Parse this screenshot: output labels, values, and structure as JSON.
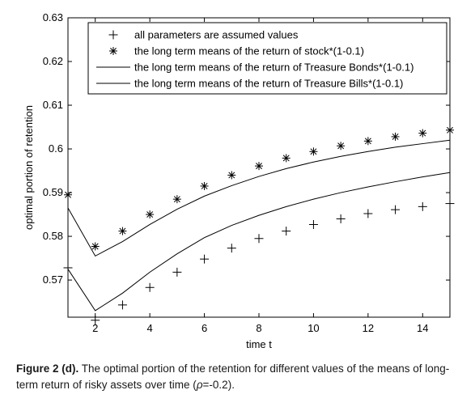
{
  "chart_data": {
    "type": "line",
    "xlabel": "time t",
    "ylabel": "optimal portion of retention",
    "xlim": [
      1,
      15
    ],
    "ylim": [
      0.5615,
      0.63
    ],
    "x_ticks": [
      2,
      4,
      6,
      8,
      10,
      12,
      14
    ],
    "y_ticks": [
      0.57,
      0.58,
      0.59,
      0.6,
      0.61,
      0.62,
      0.63
    ],
    "x_tick_labels": [
      "2",
      "4",
      "6",
      "8",
      "10",
      "12",
      "14"
    ],
    "y_tick_labels": [
      "0.57",
      "0.58",
      "0.59",
      "0.6",
      "0.61",
      "0.62",
      "0.63"
    ],
    "legend_position": "top-right",
    "x": [
      1,
      2,
      3,
      4,
      5,
      6,
      7,
      8,
      9,
      10,
      11,
      12,
      13,
      14,
      15
    ],
    "series": [
      {
        "name": "all parameters are assumed values",
        "marker": "plus",
        "values": [
          0.5728,
          0.5608,
          0.5643,
          0.5683,
          0.5718,
          0.5748,
          0.5773,
          0.5795,
          0.5812,
          0.5827,
          0.584,
          0.5852,
          0.5861,
          0.5868,
          0.5875
        ]
      },
      {
        "name": "the long term means of the return of stock*(1-0.1)",
        "marker": "star",
        "values": [
          0.5895,
          0.5777,
          0.5812,
          0.585,
          0.5885,
          0.5915,
          0.594,
          0.5961,
          0.5979,
          0.5994,
          0.6007,
          0.6018,
          0.6028,
          0.6036,
          0.6043
        ]
      },
      {
        "name": "the long term means of the return of Treasure Bonds*(1-0.1)",
        "marker": "line",
        "values": [
          0.5865,
          0.5755,
          0.5788,
          0.5827,
          0.5862,
          0.5892,
          0.5916,
          0.5937,
          0.5955,
          0.597,
          0.5983,
          0.5994,
          0.6004,
          0.6012,
          0.602
        ]
      },
      {
        "name": "the long term means of the return of Treasure Bills*(1-0.1)",
        "marker": "line",
        "values": [
          0.5725,
          0.563,
          0.567,
          0.5718,
          0.576,
          0.5797,
          0.5825,
          0.5848,
          0.5868,
          0.5885,
          0.59,
          0.5913,
          0.5925,
          0.5936,
          0.5946
        ]
      }
    ]
  },
  "caption": {
    "figure_label": "Figure 2 (d).",
    "text": " The optimal portion of the retention for different values of the means of long-term return of risky assets over time (",
    "rho": "ρ",
    "rho_value": "=-0.2)."
  },
  "colors": {
    "axis": "#000000",
    "series": "#000000",
    "caption": "#1a1a1a"
  }
}
